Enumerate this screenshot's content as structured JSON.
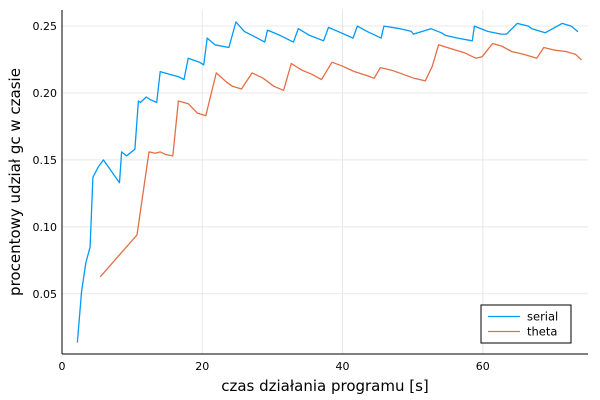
{
  "chart_data": {
    "type": "line",
    "title": "",
    "xlabel": "czas działania programu [s]",
    "ylabel": "procentowy udział gc w czasie",
    "xlim": [
      0,
      75
    ],
    "ylim": [
      0.005,
      0.262
    ],
    "xticks": [
      0,
      20,
      40,
      60
    ],
    "yticks": [
      0.05,
      0.1,
      0.15,
      0.2,
      0.25
    ],
    "ytick_labels": [
      "0.05",
      "0.10",
      "0.15",
      "0.20",
      "0.25"
    ],
    "xtick_labels": [
      "0",
      "20",
      "40",
      "60"
    ],
    "grid": true,
    "legend_position": "bottom-right",
    "series": [
      {
        "name": "serial",
        "color": "#009AFA",
        "x": [
          2.2,
          2.8,
          3.4,
          4.0,
          4.4,
          5.2,
          5.9,
          8.2,
          8.5,
          9.2,
          10.4,
          10.9,
          11.2,
          12.0,
          12.6,
          13.5,
          14.0,
          15.3,
          16.7,
          17.4,
          18.0,
          19.6,
          20.2,
          20.7,
          21.8,
          23.8,
          24.8,
          26.0,
          27.5,
          28.9,
          29.3,
          31.1,
          33.0,
          33.7,
          35.3,
          37.3,
          38.0,
          39.8,
          41.5,
          42.1,
          43.5,
          45.5,
          45.9,
          48.2,
          49.8,
          50.1,
          52.6,
          54.1,
          54.7,
          56.4,
          58.5,
          58.8,
          60.7,
          62.6,
          63.4,
          64.9,
          66.5,
          67.0,
          68.9,
          71.3,
          72.6,
          73.5
        ],
        "y": [
          0.014,
          0.052,
          0.073,
          0.085,
          0.137,
          0.145,
          0.15,
          0.133,
          0.156,
          0.153,
          0.158,
          0.194,
          0.193,
          0.197,
          0.195,
          0.193,
          0.216,
          0.214,
          0.212,
          0.21,
          0.226,
          0.223,
          0.221,
          0.241,
          0.236,
          0.234,
          0.253,
          0.246,
          0.242,
          0.238,
          0.247,
          0.243,
          0.238,
          0.248,
          0.243,
          0.239,
          0.249,
          0.245,
          0.241,
          0.25,
          0.246,
          0.241,
          0.25,
          0.248,
          0.246,
          0.244,
          0.248,
          0.245,
          0.243,
          0.241,
          0.239,
          0.25,
          0.246,
          0.244,
          0.244,
          0.252,
          0.25,
          0.248,
          0.245,
          0.252,
          0.25,
          0.246
        ]
      },
      {
        "name": "theta",
        "color": "#E26F46",
        "x": [
          5.5,
          10.7,
          12.4,
          13.3,
          14.0,
          14.8,
          15.8,
          16.6,
          18.0,
          19.3,
          20.5,
          22.0,
          23.5,
          24.3,
          25.6,
          27.1,
          28.7,
          30.2,
          31.6,
          32.7,
          34.2,
          35.6,
          37.0,
          38.5,
          40.0,
          41.7,
          43.5,
          44.5,
          45.4,
          47.0,
          48.6,
          50.2,
          51.8,
          52.8,
          53.7,
          55.5,
          57.4,
          59.0,
          59.9,
          61.4,
          62.7,
          64.1,
          65.8,
          67.7,
          68.7,
          70.3,
          71.8,
          73.2,
          74.0
        ],
        "y": [
          0.063,
          0.094,
          0.156,
          0.155,
          0.156,
          0.154,
          0.153,
          0.194,
          0.192,
          0.185,
          0.183,
          0.215,
          0.208,
          0.205,
          0.203,
          0.215,
          0.211,
          0.205,
          0.202,
          0.222,
          0.217,
          0.214,
          0.21,
          0.223,
          0.22,
          0.216,
          0.213,
          0.211,
          0.219,
          0.217,
          0.214,
          0.211,
          0.209,
          0.22,
          0.236,
          0.233,
          0.23,
          0.226,
          0.227,
          0.237,
          0.235,
          0.231,
          0.229,
          0.226,
          0.234,
          0.232,
          0.231,
          0.229,
          0.225
        ]
      }
    ]
  }
}
